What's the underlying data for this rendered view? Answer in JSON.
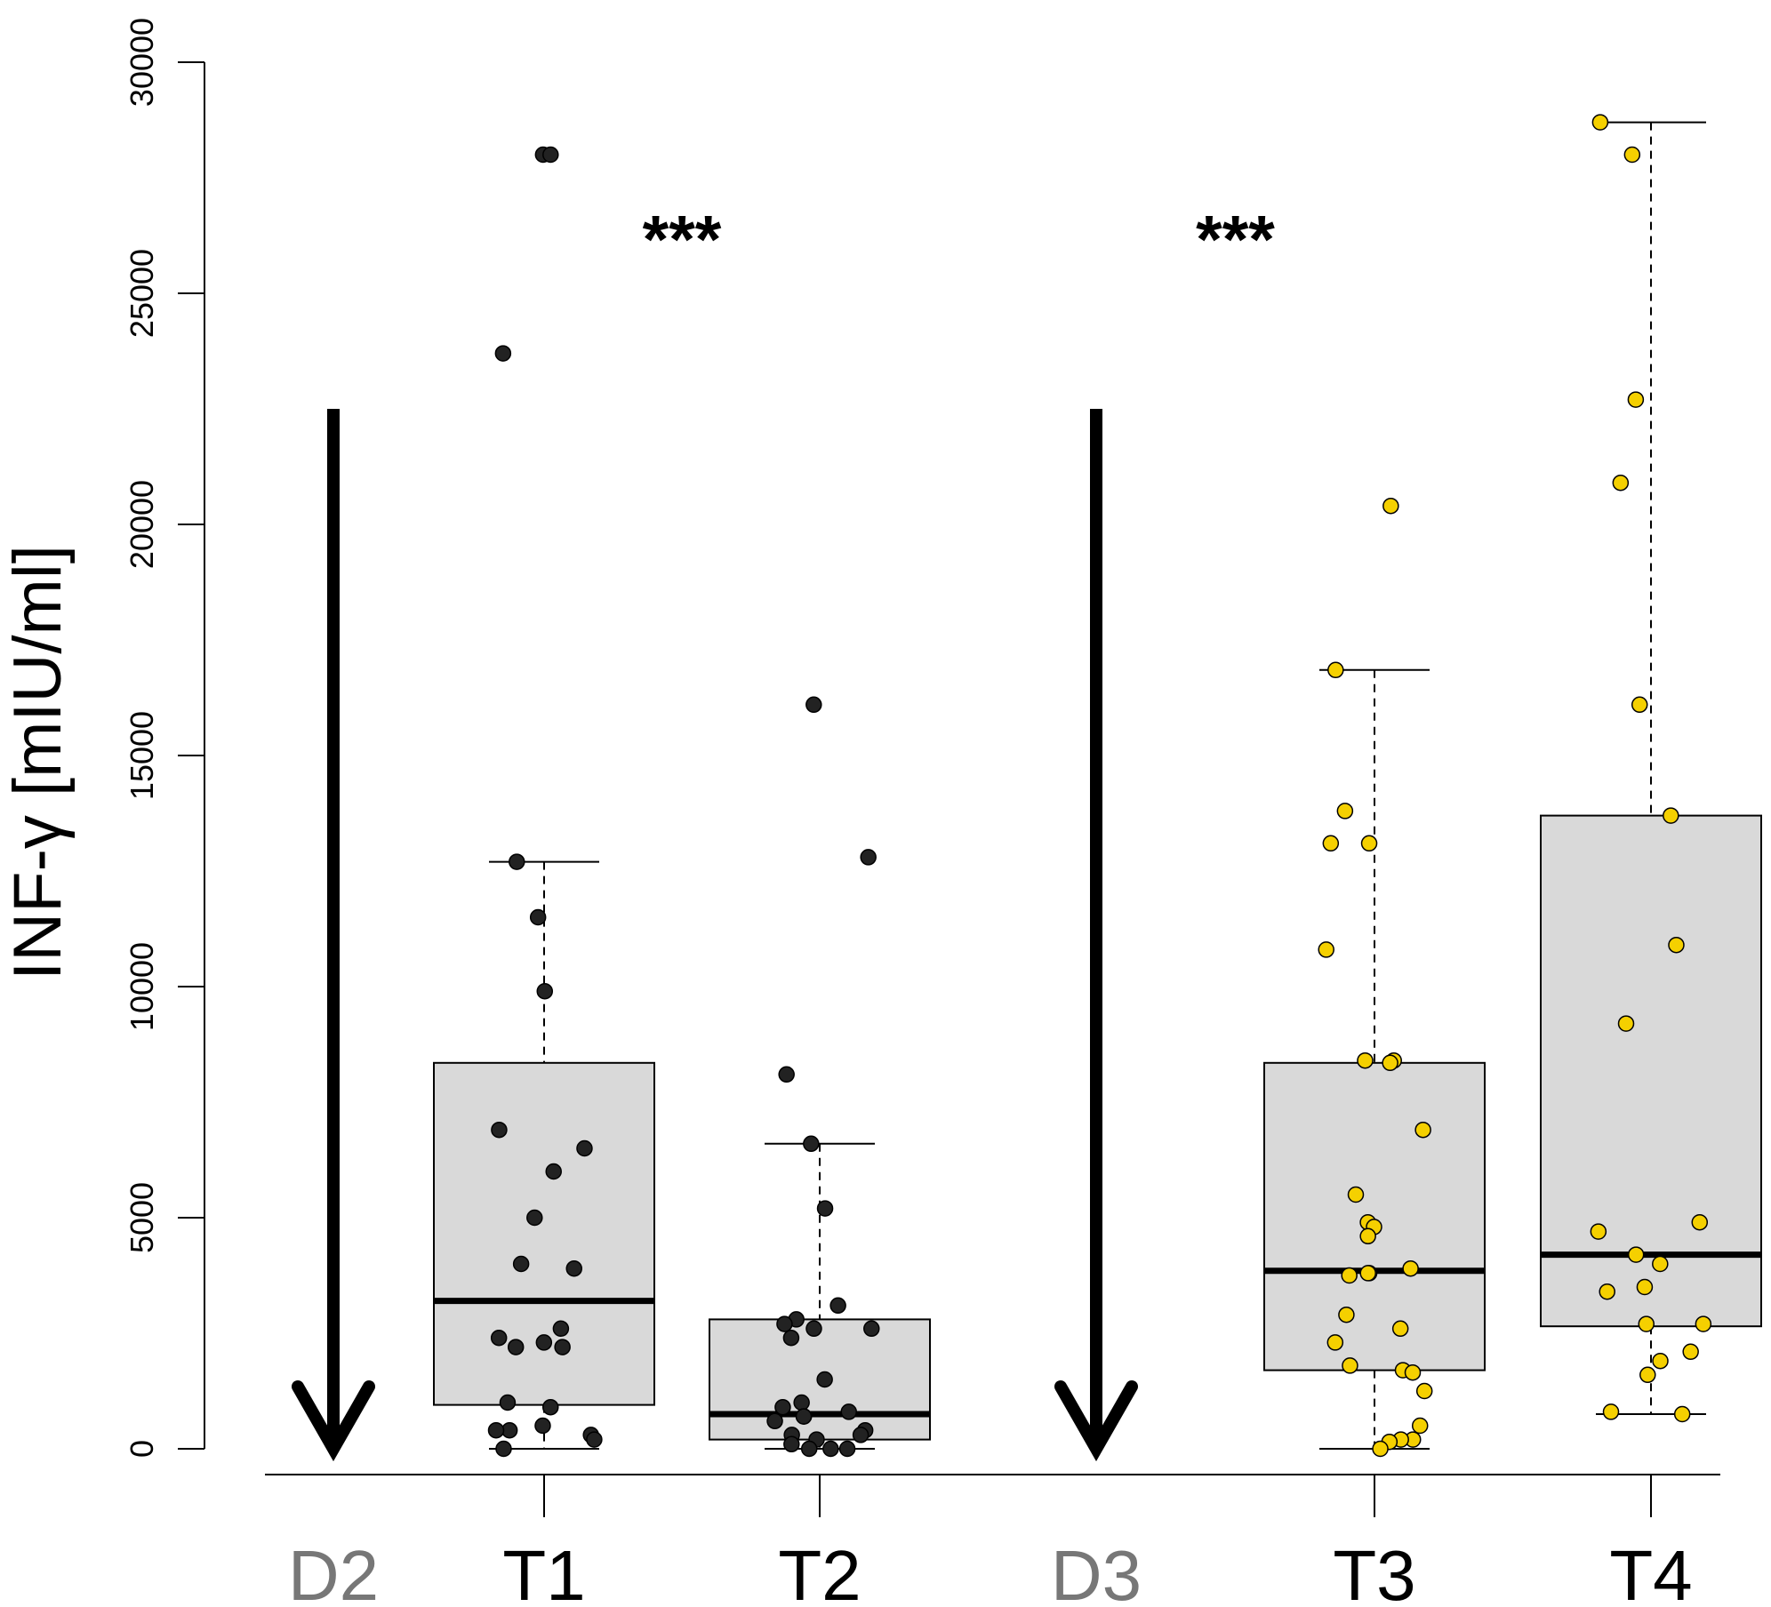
{
  "chart_data": {
    "type": "box",
    "ylabel": "INF-γ [mIU/ml]",
    "ylim": [
      0,
      30000
    ],
    "yticks": [
      0,
      5000,
      10000,
      15000,
      20000,
      25000,
      30000
    ],
    "ytick_labels": [
      "0",
      "5000",
      "10000",
      "15000",
      "20000",
      "25000",
      "30000"
    ],
    "categories": [
      "D2",
      "T1",
      "T2",
      "D3",
      "T3",
      "T4"
    ],
    "category_colors": [
      "#777777",
      "#000000",
      "#000000",
      "#777777",
      "#000000",
      "#000000"
    ],
    "box_fill": "#d9d9d9",
    "dose_arrows": [
      {
        "label": "D2",
        "from": 22500,
        "to": 0
      },
      {
        "label": "D3",
        "from": 22500,
        "to": 0
      }
    ],
    "significance": [
      {
        "label": "***",
        "between": [
          "T1",
          "T2"
        ],
        "y": 26200
      },
      {
        "label": "***",
        "between": [
          "D3",
          "T3"
        ],
        "y": 26200
      }
    ],
    "boxes": [
      {
        "name": "T1",
        "color": "#222222",
        "whisker_low": 0,
        "q1": 950,
        "median": 3200,
        "q3": 8350,
        "whisker_high": 12700,
        "points": [
          28000,
          28000,
          23700,
          12700,
          11500,
          9900,
          6900,
          6500,
          6000,
          5000,
          4000,
          3900,
          2600,
          2400,
          2300,
          2200,
          2200,
          1000,
          900,
          500,
          400,
          400,
          300,
          200,
          0
        ]
      },
      {
        "name": "T2",
        "color": "#222222",
        "whisker_low": 0,
        "q1": 200,
        "median": 750,
        "q3": 2800,
        "whisker_high": 6600,
        "points": [
          16100,
          12800,
          8100,
          6600,
          5200,
          3100,
          2800,
          2700,
          2600,
          2600,
          2400,
          1500,
          1000,
          900,
          800,
          700,
          700,
          600,
          400,
          300,
          300,
          200,
          100,
          0,
          0,
          0
        ]
      },
      {
        "name": "T3",
        "color": "#f5d000",
        "whisker_low": 0,
        "q1": 1700,
        "median": 3850,
        "q3": 8350,
        "whisker_high": 16850,
        "points": [
          20400,
          16850,
          13800,
          13100,
          13100,
          10800,
          8400,
          8400,
          8350,
          6900,
          5500,
          4900,
          4800,
          4600,
          3900,
          3800,
          3800,
          3750,
          2900,
          2600,
          2300,
          1800,
          1700,
          1650,
          1250,
          500,
          200,
          200,
          150,
          0
        ]
      },
      {
        "name": "T4",
        "color": "#f5d000",
        "whisker_low": 750,
        "q1": 2650,
        "median": 4200,
        "q3": 13700,
        "whisker_high": 28700,
        "points": [
          28700,
          28000,
          22700,
          20900,
          16100,
          13700,
          10900,
          9200,
          4900,
          4700,
          4200,
          4000,
          3500,
          3400,
          2700,
          2700,
          2100,
          1900,
          1600,
          800,
          750
        ]
      }
    ]
  }
}
